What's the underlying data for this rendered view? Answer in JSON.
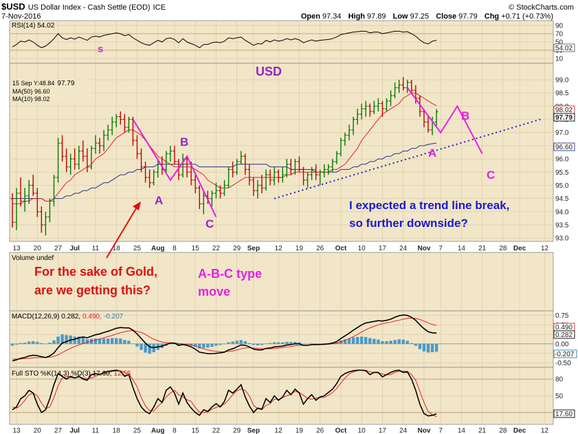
{
  "header": {
    "symbol": "$USD",
    "name": "US Dollar Index - Cash Settle (EOD)",
    "exchange": "ICE",
    "date": "7-Nov-2016",
    "brand": "© StockCharts.com",
    "quote_open_label": "Open",
    "quote_open": "97.34",
    "quote_high_label": "High",
    "quote_high": "97.89",
    "quote_low_label": "Low",
    "quote_low": "97.25",
    "quote_close_label": "Close",
    "quote_close": "97.79",
    "quote_chg_label": "Chg",
    "quote_chg": "+0.71 (+0.73%)"
  },
  "colors": {
    "panel_bg": "#f2e6c8",
    "price_up": "#007a00",
    "price_down": "#c00000",
    "ma10": "#e02020",
    "ma50": "#203090",
    "annotation_magenta": "#e61ee6",
    "annotation_purple": "#9b22c8",
    "annotation_red": "#e01010",
    "annotation_blue": "#1a1ad0",
    "histogram": "#4a9ac8"
  },
  "x_axis": {
    "ticks": [
      {
        "label": "13",
        "i": 1
      },
      {
        "label": "20",
        "i": 6
      },
      {
        "label": "27",
        "i": 11
      },
      {
        "label": "Jul",
        "i": 15
      },
      {
        "label": "11",
        "i": 20
      },
      {
        "label": "18",
        "i": 25
      },
      {
        "label": "25",
        "i": 30
      },
      {
        "label": "Aug",
        "i": 35
      },
      {
        "label": "8",
        "i": 39
      },
      {
        "label": "15",
        "i": 44
      },
      {
        "label": "22",
        "i": 49
      },
      {
        "label": "29",
        "i": 54
      },
      {
        "label": "Sep",
        "i": 58
      },
      {
        "label": "12",
        "i": 64
      },
      {
        "label": "19",
        "i": 69
      },
      {
        "label": "26",
        "i": 74
      },
      {
        "label": "Oct",
        "i": 79
      },
      {
        "label": "10",
        "i": 84
      },
      {
        "label": "17",
        "i": 89
      },
      {
        "label": "24",
        "i": 94
      },
      {
        "label": "Nov",
        "i": 99
      },
      {
        "label": "7",
        "i": 103
      },
      {
        "label": "14",
        "i": 108
      },
      {
        "label": "21",
        "i": 113
      },
      {
        "label": "28",
        "i": 118
      },
      {
        "label": "Dec",
        "i": 122
      },
      {
        "label": "12",
        "i": 128
      }
    ]
  },
  "rsi_panel": {
    "legend": "RSI(14) 54.02",
    "value_tag": "54.02",
    "ticks": [
      90,
      70,
      50,
      30,
      10
    ],
    "ylim": [
      0,
      100
    ],
    "annotation_s": "s"
  },
  "price_panel": {
    "title_usd": "USD",
    "legend_date": "15 Sep Y:48.84",
    "legend_value": "97.79",
    "legend_ma50": "MA(50) 96.60",
    "legend_ma10": "MA(10) 98.02",
    "ticks": [
      99.0,
      98.5,
      98.0,
      97.5,
      97.0,
      96.5,
      96.0,
      95.5,
      95.0,
      94.5,
      94.0,
      93.5,
      93.0
    ],
    "ylim": [
      92.9,
      99.6
    ],
    "tag_ma10": "98.02",
    "tag_close": "97.79",
    "tag_ma50": "96.60",
    "wave_labels": {
      "a1": "A",
      "b1": "B",
      "c1": "C",
      "a2": "A",
      "b2": "B",
      "c2": "C"
    },
    "note_line1": "I expected a trend line break,",
    "note_line2": "so further downside?"
  },
  "volume_panel": {
    "legend": "Volume undef",
    "note_red_line1": "For the sake of Gold,",
    "note_red_line2": "are we getting this?",
    "note_magenta_line1": "A-B-C type",
    "note_magenta_line2": "move"
  },
  "macd_panel": {
    "legend_prefix": "MACD(12,26,9) 0.282,",
    "legend_signal": "0.490,",
    "legend_hist": "-0.207",
    "ticks": [
      0.75,
      0.5,
      0.25,
      0.0,
      -0.25,
      -0.5
    ],
    "ylim": [
      -0.6,
      0.85
    ],
    "tag_signal": "0.490",
    "tag_macd": "0.282",
    "tag_hist": "-0.207"
  },
  "sto_panel": {
    "legend_prefix": "Full STO %K(14,3) %D(3) 17.60,",
    "legend_d": "12.55",
    "ticks": [
      80,
      50,
      20
    ],
    "ylim": [
      0,
      100
    ],
    "tag": "17.60"
  },
  "chart_data": {
    "type": "line",
    "title": "$USD US Dollar Index - Cash Settle (EOD) ICE",
    "price_ohlc_approx": [
      [
        94.5,
        94.7,
        93.4,
        93.6
      ],
      [
        93.6,
        94.9,
        93.3,
        94.7
      ],
      [
        94.7,
        95.3,
        94.2,
        94.4
      ],
      [
        94.4,
        94.9,
        94.0,
        94.6
      ],
      [
        94.6,
        95.2,
        94.3,
        95.0
      ],
      [
        95.0,
        95.4,
        94.6,
        94.7
      ],
      [
        94.7,
        94.9,
        93.8,
        94.0
      ],
      [
        94.0,
        94.2,
        93.2,
        93.5
      ],
      [
        93.5,
        94.0,
        93.1,
        93.8
      ],
      [
        93.8,
        94.5,
        93.6,
        94.4
      ],
      [
        94.4,
        95.4,
        94.2,
        95.3
      ],
      [
        95.3,
        96.8,
        95.1,
        96.6
      ],
      [
        96.6,
        96.9,
        95.9,
        96.1
      ],
      [
        96.1,
        96.4,
        95.5,
        95.7
      ],
      [
        95.7,
        96.2,
        95.4,
        96.0
      ],
      [
        96.0,
        96.4,
        95.6,
        95.8
      ],
      [
        95.8,
        96.5,
        95.6,
        96.3
      ],
      [
        96.3,
        96.7,
        95.9,
        96.1
      ],
      [
        96.1,
        96.4,
        95.5,
        95.7
      ],
      [
        95.7,
        96.5,
        95.6,
        96.4
      ],
      [
        96.4,
        96.9,
        96.2,
        96.6
      ],
      [
        96.6,
        96.8,
        96.2,
        96.5
      ],
      [
        96.5,
        97.1,
        96.3,
        96.9
      ],
      [
        96.9,
        97.3,
        96.7,
        97.1
      ],
      [
        97.1,
        97.6,
        96.9,
        97.4
      ],
      [
        97.4,
        97.7,
        97.2,
        97.6
      ],
      [
        97.6,
        97.8,
        97.3,
        97.5
      ],
      [
        97.5,
        97.7,
        97.0,
        97.2
      ],
      [
        97.2,
        97.6,
        97.0,
        97.5
      ],
      [
        97.5,
        97.6,
        96.5,
        96.7
      ],
      [
        96.7,
        96.9,
        96.0,
        96.2
      ],
      [
        96.2,
        96.4,
        95.5,
        95.7
      ],
      [
        95.7,
        95.9,
        95.1,
        95.3
      ],
      [
        95.3,
        95.6,
        94.9,
        95.1
      ],
      [
        95.1,
        95.6,
        95.0,
        95.5
      ],
      [
        95.5,
        96.0,
        95.3,
        95.8
      ],
      [
        95.8,
        96.1,
        95.4,
        95.6
      ],
      [
        95.6,
        96.3,
        95.5,
        96.2
      ],
      [
        96.2,
        96.5,
        95.9,
        96.3
      ],
      [
        96.3,
        96.5,
        95.8,
        95.9
      ],
      [
        95.9,
        96.0,
        95.2,
        95.4
      ],
      [
        95.4,
        96.2,
        95.3,
        96.0
      ],
      [
        96.0,
        96.1,
        95.3,
        95.5
      ],
      [
        95.5,
        95.9,
        95.0,
        95.2
      ],
      [
        95.2,
        95.4,
        94.7,
        94.9
      ],
      [
        94.9,
        95.0,
        94.1,
        94.3
      ],
      [
        94.3,
        94.8,
        93.9,
        94.6
      ],
      [
        94.6,
        94.8,
        94.3,
        94.5
      ],
      [
        94.5,
        94.8,
        94.2,
        94.7
      ],
      [
        94.7,
        95.1,
        94.5,
        94.8
      ],
      [
        94.8,
        95.0,
        94.5,
        94.7
      ],
      [
        94.7,
        95.2,
        94.6,
        95.0
      ],
      [
        95.0,
        95.7,
        94.9,
        95.6
      ],
      [
        95.6,
        95.9,
        95.3,
        95.5
      ],
      [
        95.5,
        96.0,
        95.4,
        95.9
      ],
      [
        95.9,
        96.3,
        95.8,
        96.1
      ],
      [
        96.1,
        96.2,
        95.4,
        95.6
      ],
      [
        95.6,
        95.8,
        95.0,
        95.2
      ],
      [
        95.2,
        95.3,
        94.6,
        94.8
      ],
      [
        94.8,
        95.2,
        94.5,
        95.0
      ],
      [
        95.0,
        95.4,
        94.7,
        94.9
      ],
      [
        94.9,
        95.6,
        94.8,
        95.4
      ],
      [
        95.4,
        95.6,
        95.0,
        95.2
      ],
      [
        95.2,
        95.7,
        95.0,
        95.5
      ],
      [
        95.5,
        95.6,
        95.1,
        95.3
      ],
      [
        95.3,
        95.7,
        95.1,
        95.4
      ],
      [
        95.4,
        96.0,
        95.3,
        95.8
      ],
      [
        95.8,
        96.0,
        95.4,
        95.6
      ],
      [
        95.6,
        96.0,
        95.4,
        95.9
      ],
      [
        95.9,
        96.1,
        95.5,
        95.6
      ],
      [
        95.6,
        95.7,
        95.0,
        95.2
      ],
      [
        95.2,
        95.5,
        94.9,
        95.4
      ],
      [
        95.4,
        95.7,
        95.2,
        95.6
      ],
      [
        95.6,
        95.8,
        95.2,
        95.4
      ],
      [
        95.4,
        95.6,
        95.0,
        95.5
      ],
      [
        95.5,
        95.8,
        95.3,
        95.6
      ],
      [
        95.6,
        95.8,
        95.4,
        95.7
      ],
      [
        95.7,
        96.0,
        95.5,
        95.9
      ],
      [
        95.9,
        96.3,
        95.8,
        96.2
      ],
      [
        96.2,
        96.8,
        96.1,
        96.7
      ],
      [
        96.7,
        97.0,
        96.5,
        96.9
      ],
      [
        96.9,
        97.3,
        96.7,
        97.1
      ],
      [
        97.1,
        97.6,
        96.9,
        97.5
      ],
      [
        97.5,
        97.9,
        97.3,
        97.7
      ],
      [
        97.7,
        98.1,
        97.5,
        97.9
      ],
      [
        97.9,
        98.2,
        97.6,
        98.0
      ],
      [
        98.0,
        98.1,
        97.6,
        97.8
      ],
      [
        97.8,
        98.2,
        97.7,
        98.0
      ],
      [
        98.0,
        98.3,
        97.8,
        98.1
      ],
      [
        98.1,
        98.2,
        97.6,
        97.9
      ],
      [
        97.9,
        98.3,
        97.8,
        98.2
      ],
      [
        98.2,
        98.6,
        98.0,
        98.4
      ],
      [
        98.4,
        98.9,
        98.3,
        98.7
      ],
      [
        98.7,
        99.0,
        98.5,
        98.8
      ],
      [
        98.8,
        99.1,
        98.6,
        98.7
      ],
      [
        98.7,
        99.0,
        98.5,
        98.9
      ],
      [
        98.9,
        99.0,
        98.5,
        98.6
      ],
      [
        98.6,
        98.8,
        98.1,
        98.3
      ],
      [
        98.3,
        98.4,
        97.6,
        97.8
      ],
      [
        97.8,
        97.9,
        97.2,
        97.4
      ],
      [
        97.4,
        97.6,
        97.0,
        97.1
      ],
      [
        97.1,
        97.6,
        96.9,
        97.4
      ],
      [
        97.4,
        97.89,
        97.25,
        97.79
      ]
    ],
    "ma10_approx": [
      94.3,
      94.3,
      94.3,
      94.4,
      94.4,
      94.5,
      94.5,
      94.5,
      94.4,
      94.4,
      94.5,
      94.7,
      94.9,
      95.1,
      95.2,
      95.4,
      95.5,
      95.6,
      95.7,
      95.8,
      96.0,
      96.1,
      96.2,
      96.4,
      96.6,
      96.8,
      96.9,
      97.0,
      97.1,
      97.1,
      97.0,
      96.9,
      96.7,
      96.5,
      96.3,
      96.1,
      96.0,
      95.9,
      95.8,
      95.7,
      95.7,
      95.7,
      95.7,
      95.7,
      95.6,
      95.5,
      95.4,
      95.2,
      95.1,
      95.0,
      94.9,
      94.9,
      94.9,
      95.0,
      95.1,
      95.2,
      95.3,
      95.3,
      95.3,
      95.3,
      95.3,
      95.3,
      95.3,
      95.3,
      95.3,
      95.3,
      95.4,
      95.4,
      95.5,
      95.5,
      95.5,
      95.5,
      95.5,
      95.5,
      95.5,
      95.5,
      95.5,
      95.6,
      95.6,
      95.7,
      95.8,
      96.0,
      96.2,
      96.4,
      96.7,
      96.9,
      97.1,
      97.3,
      97.5,
      97.7,
      97.8,
      97.9,
      98.0,
      98.1,
      98.3,
      98.4,
      98.5,
      98.5,
      98.4,
      98.3,
      98.2,
      98.1,
      98.02
    ],
    "ma50_approx": [
      94.5,
      94.5,
      94.5,
      94.5,
      94.5,
      94.5,
      94.5,
      94.5,
      94.4,
      94.4,
      94.5,
      94.5,
      94.5,
      94.6,
      94.6,
      94.7,
      94.7,
      94.8,
      94.8,
      94.9,
      94.9,
      95.0,
      95.1,
      95.1,
      95.2,
      95.3,
      95.4,
      95.4,
      95.5,
      95.5,
      95.6,
      95.6,
      95.7,
      95.7,
      95.7,
      95.8,
      95.8,
      95.8,
      95.8,
      95.8,
      95.8,
      95.8,
      95.8,
      95.8,
      95.8,
      95.7,
      95.7,
      95.7,
      95.7,
      95.7,
      95.7,
      95.7,
      95.7,
      95.7,
      95.8,
      95.8,
      95.8,
      95.8,
      95.8,
      95.8,
      95.8,
      95.8,
      95.7,
      95.7,
      95.7,
      95.7,
      95.7,
      95.6,
      95.6,
      95.6,
      95.6,
      95.6,
      95.6,
      95.5,
      95.5,
      95.5,
      95.5,
      95.5,
      95.5,
      95.6,
      95.6,
      95.6,
      95.7,
      95.7,
      95.8,
      95.8,
      95.9,
      95.9,
      96.0,
      96.0,
      96.1,
      96.1,
      96.2,
      96.2,
      96.3,
      96.3,
      96.4,
      96.4,
      96.5,
      96.5,
      96.55,
      96.58,
      96.6
    ],
    "rsi_approx": [
      38,
      44,
      52,
      50,
      55,
      50,
      42,
      36,
      40,
      48,
      58,
      70,
      60,
      56,
      60,
      57,
      62,
      58,
      54,
      62,
      64,
      62,
      66,
      68,
      70,
      72,
      70,
      65,
      68,
      60,
      54,
      48,
      44,
      42,
      48,
      54,
      50,
      58,
      60,
      56,
      48,
      58,
      50,
      46,
      42,
      36,
      44,
      44,
      48,
      50,
      48,
      52,
      60,
      58,
      60,
      62,
      54,
      48,
      42,
      46,
      45,
      54,
      50,
      55,
      52,
      54,
      58,
      55,
      58,
      55,
      48,
      52,
      55,
      52,
      54,
      55,
      56,
      58,
      62,
      68,
      70,
      72,
      74,
      75,
      76,
      76,
      72,
      74,
      74,
      70,
      72,
      74,
      76,
      76,
      74,
      75,
      70,
      64,
      55,
      48,
      45,
      52,
      54.02
    ],
    "macd_approx": [
      -0.45,
      -0.42,
      -0.38,
      -0.36,
      -0.32,
      -0.3,
      -0.31,
      -0.34,
      -0.36,
      -0.32,
      -0.24,
      -0.1,
      0.02,
      0.06,
      0.1,
      0.12,
      0.16,
      0.18,
      0.16,
      0.2,
      0.24,
      0.26,
      0.3,
      0.33,
      0.37,
      0.41,
      0.43,
      0.42,
      0.42,
      0.36,
      0.26,
      0.14,
      0.02,
      -0.08,
      -0.1,
      -0.08,
      -0.06,
      -0.02,
      0.02,
      0.02,
      -0.04,
      -0.02,
      -0.04,
      -0.08,
      -0.14,
      -0.22,
      -0.24,
      -0.26,
      -0.26,
      -0.25,
      -0.24,
      -0.22,
      -0.16,
      -0.13,
      -0.08,
      -0.03,
      -0.04,
      -0.08,
      -0.14,
      -0.16,
      -0.16,
      -0.12,
      -0.11,
      -0.08,
      -0.07,
      -0.06,
      -0.03,
      -0.02,
      0.0,
      0.0,
      -0.04,
      -0.04,
      -0.02,
      -0.02,
      -0.02,
      -0.01,
      0.0,
      0.02,
      0.06,
      0.14,
      0.21,
      0.28,
      0.36,
      0.43,
      0.5,
      0.55,
      0.57,
      0.59,
      0.61,
      0.6,
      0.62,
      0.65,
      0.7,
      0.74,
      0.76,
      0.75,
      0.7,
      0.62,
      0.5,
      0.4,
      0.32,
      0.29,
      0.282
    ],
    "signal_approx": [
      -0.4,
      -0.4,
      -0.4,
      -0.39,
      -0.38,
      -0.37,
      -0.36,
      -0.36,
      -0.36,
      -0.35,
      -0.33,
      -0.29,
      -0.23,
      -0.17,
      -0.12,
      -0.07,
      -0.03,
      0.01,
      0.04,
      0.07,
      0.1,
      0.13,
      0.16,
      0.19,
      0.22,
      0.26,
      0.29,
      0.32,
      0.34,
      0.35,
      0.33,
      0.3,
      0.25,
      0.18,
      0.12,
      0.08,
      0.05,
      0.03,
      0.02,
      0.02,
      0.01,
      0.0,
      -0.01,
      -0.03,
      -0.06,
      -0.1,
      -0.13,
      -0.16,
      -0.18,
      -0.2,
      -0.21,
      -0.21,
      -0.2,
      -0.19,
      -0.16,
      -0.13,
      -0.11,
      -0.1,
      -0.11,
      -0.12,
      -0.13,
      -0.13,
      -0.13,
      -0.12,
      -0.11,
      -0.1,
      -0.08,
      -0.07,
      -0.05,
      -0.04,
      -0.04,
      -0.04,
      -0.03,
      -0.03,
      -0.02,
      -0.02,
      -0.01,
      0.0,
      0.02,
      0.05,
      0.09,
      0.14,
      0.19,
      0.25,
      0.31,
      0.37,
      0.42,
      0.46,
      0.5,
      0.53,
      0.55,
      0.57,
      0.6,
      0.62,
      0.65,
      0.67,
      0.68,
      0.67,
      0.64,
      0.6,
      0.55,
      0.51,
      0.49
    ],
    "sto_k_approx": [
      25,
      30,
      45,
      50,
      60,
      55,
      35,
      20,
      25,
      45,
      70,
      90,
      85,
      80,
      85,
      82,
      85,
      80,
      78,
      88,
      90,
      88,
      92,
      94,
      95,
      96,
      94,
      85,
      88,
      65,
      45,
      30,
      22,
      18,
      30,
      45,
      38,
      60,
      66,
      55,
      35,
      55,
      38,
      28,
      20,
      15,
      25,
      22,
      30,
      36,
      30,
      40,
      60,
      55,
      62,
      70,
      48,
      32,
      20,
      28,
      26,
      45,
      38,
      50,
      42,
      48,
      60,
      52,
      62,
      55,
      35,
      45,
      52,
      42,
      48,
      50,
      56,
      62,
      72,
      85,
      90,
      93,
      95,
      96,
      96,
      95,
      88,
      92,
      92,
      84,
      88,
      92,
      95,
      96,
      92,
      93,
      80,
      60,
      35,
      18,
      14,
      15,
      17.6
    ],
    "sto_d_approx": [
      30,
      28,
      33,
      42,
      52,
      55,
      50,
      37,
      27,
      30,
      47,
      68,
      82,
      85,
      83,
      82,
      84,
      82,
      81,
      82,
      85,
      89,
      90,
      91,
      94,
      95,
      95,
      92,
      89,
      79,
      66,
      47,
      32,
      23,
      23,
      31,
      38,
      48,
      55,
      60,
      52,
      48,
      43,
      40,
      29,
      21,
      20,
      21,
      26,
      29,
      32,
      35,
      43,
      52,
      59,
      62,
      60,
      50,
      33,
      27,
      25,
      33,
      36,
      44,
      43,
      47,
      50,
      53,
      58,
      56,
      51,
      45,
      44,
      46,
      47,
      47,
      51,
      56,
      63,
      73,
      82,
      89,
      93,
      95,
      96,
      96,
      93,
      92,
      91,
      89,
      88,
      88,
      92,
      94,
      94,
      94,
      88,
      78,
      58,
      38,
      22,
      16,
      12.55
    ]
  }
}
